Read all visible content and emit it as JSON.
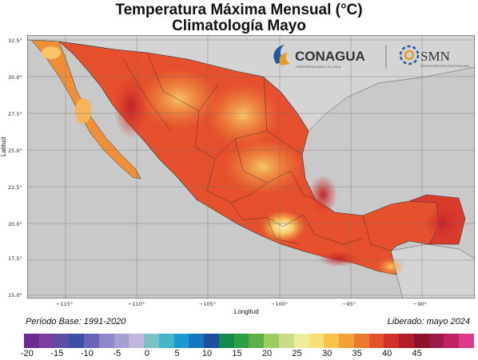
{
  "title_line1": "Temperatura Máxima Mensual (°C)",
  "title_line2": "Climatología Mayo",
  "y_axis_label": "Latitud",
  "x_axis_label": "Longitud",
  "lat_ticks": [
    "32.5°",
    "30.0°",
    "27.5°",
    "25.0°",
    "22.5°",
    "20.0°",
    "17.5°",
    "15.0°"
  ],
  "lon_ticks": [
    "−115°",
    "−110°",
    "−105°",
    "−100°",
    "−95°",
    "−90°"
  ],
  "logos": {
    "conagua_name": "CONAGUA",
    "conagua_sub": "COMISIÓN NACIONAL DEL AGUA",
    "smn_name": "SMN",
    "smn_sub": "SERVICIO METEOROLÓGICO NACIONAL"
  },
  "footer_left": "Período Base: 1991-2020",
  "footer_right": "Liberado: mayo 2024",
  "colorbar_ticks": [
    "-20",
    "-15",
    "-10",
    "-5",
    "0",
    "5",
    "10",
    "15",
    "20",
    "25",
    "30",
    "35",
    "40",
    "45"
  ],
  "colorbar_colors": [
    "#6a2c91",
    "#7b3f9e",
    "#5b4ea3",
    "#3e4fa8",
    "#6a64b8",
    "#8d86c8",
    "#a3a0d4",
    "#c3b6dd",
    "#7bc2c4",
    "#46b4c9",
    "#1b9ad1",
    "#1677c1",
    "#1c4f9e",
    "#138a4a",
    "#2e9d4a",
    "#5bb04a",
    "#9ccb5f",
    "#c8dc8a",
    "#ecec9a",
    "#f6e07a",
    "#f7c24a",
    "#f3a23a",
    "#ec7a2e",
    "#e3532a",
    "#d1312a",
    "#b51c2a",
    "#8e1328",
    "#9a1a4a",
    "#c22063",
    "#de3a8c"
  ],
  "colors": {
    "ocean": "#c9c9c9",
    "land_usa": "#d4d4d4",
    "hot": "#d8352a",
    "warm": "#f09a3a"
  }
}
